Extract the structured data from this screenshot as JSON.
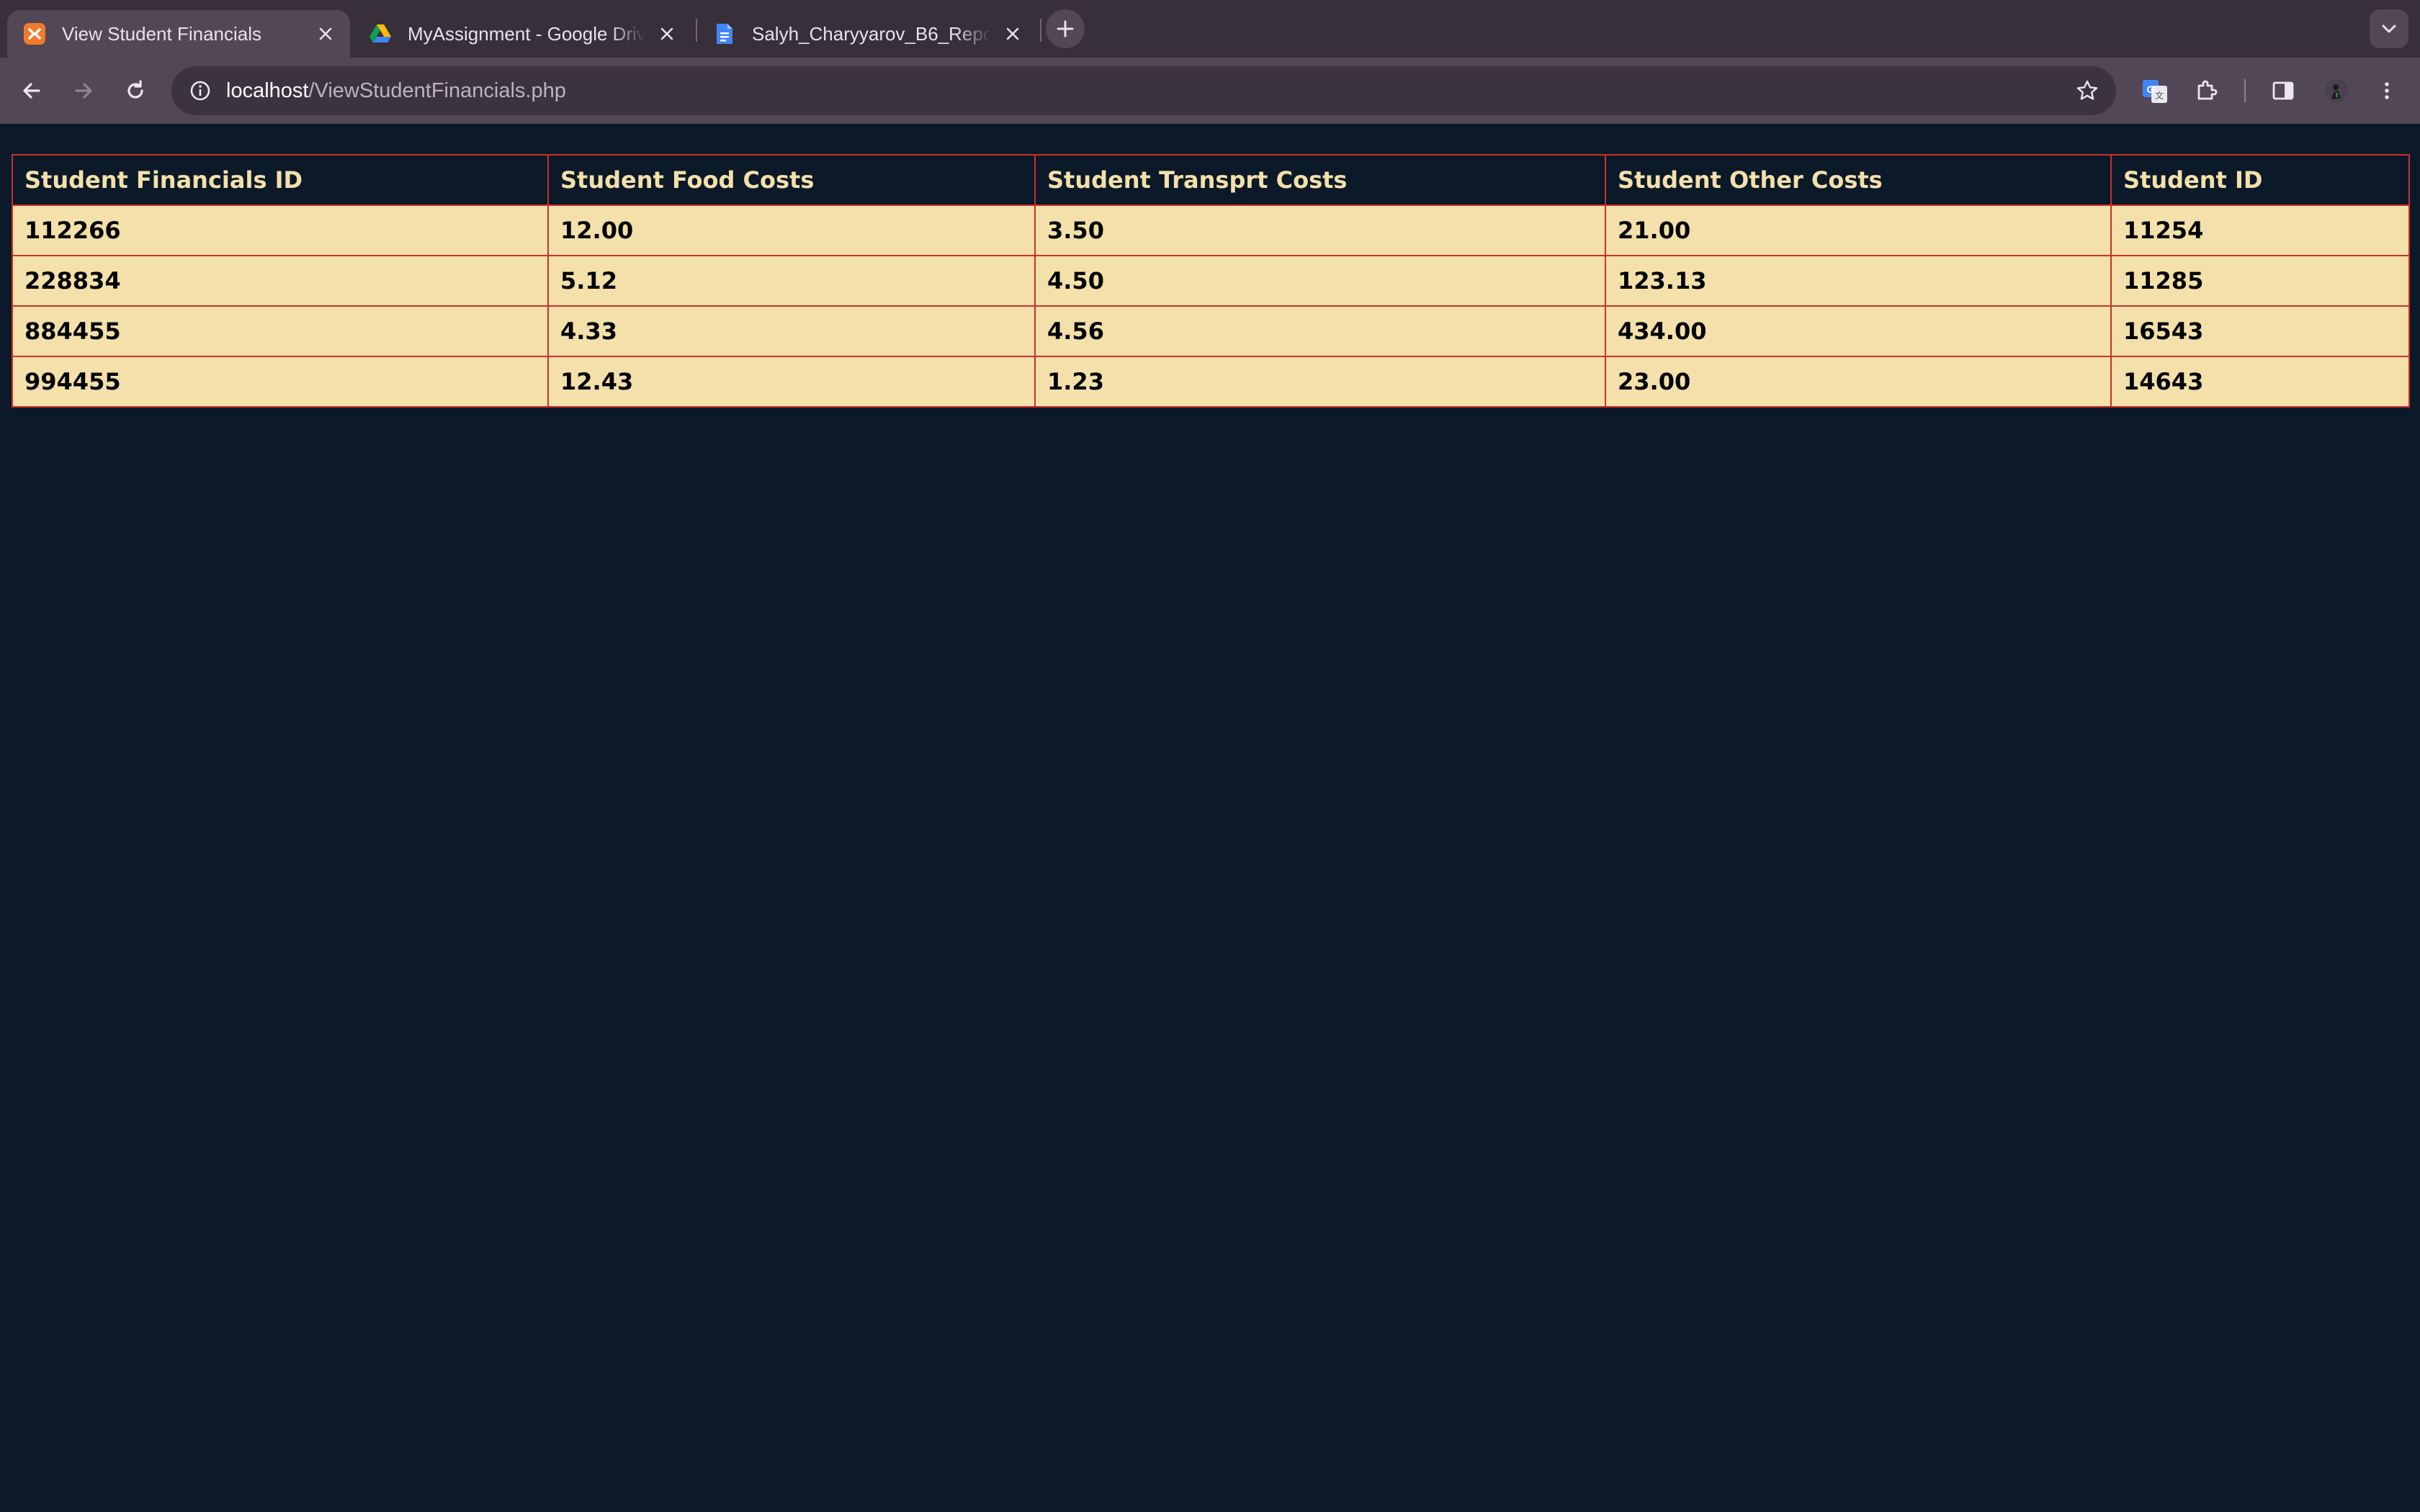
{
  "browser": {
    "tabs": [
      {
        "title": "View Student Financials",
        "favicon": "xampp-icon",
        "active": true
      },
      {
        "title": "MyAssignment - Google Drive",
        "favicon": "google-drive-icon",
        "active": false
      },
      {
        "title": "Salyh_Charyyarov_B6_Report",
        "favicon": "google-docs-icon",
        "active": false
      }
    ],
    "address": {
      "host": "localhost",
      "path": "/ViewStudentFinancials.php"
    }
  },
  "colors": {
    "page_background": "#0b1929",
    "header_text": "#f3e0aa",
    "cell_background": "#f3e0aa",
    "border": "#cc2f2b"
  },
  "table": {
    "headers": [
      "Student Financials ID",
      "Student Food Costs",
      "Student Transprt Costs",
      "Student Other Costs",
      "Student ID"
    ],
    "rows": [
      [
        "112266",
        "12.00",
        "3.50",
        "21.00",
        "11254"
      ],
      [
        "228834",
        "5.12",
        "4.50",
        "123.13",
        "11285"
      ],
      [
        "884455",
        "4.33",
        "4.56",
        "434.00",
        "16543"
      ],
      [
        "994455",
        "12.43",
        "1.23",
        "23.00",
        "14643"
      ]
    ]
  }
}
